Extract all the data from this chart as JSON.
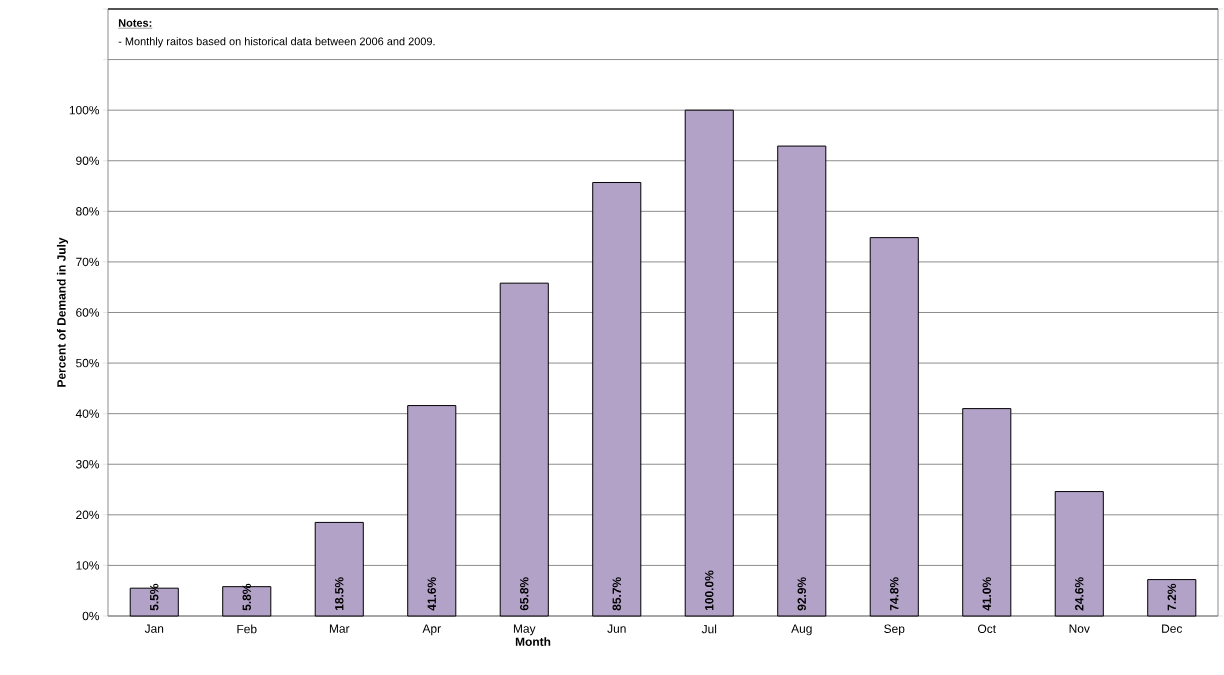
{
  "chart_data": {
    "type": "bar",
    "xlabel": "Month",
    "ylabel": "Percent of Demand in July",
    "annotations": [
      "**Notes:**",
      "- Monthly raitos based on historical data between 2006 and 2009."
    ],
    "categories": [
      "Jan",
      "Feb",
      "Mar",
      "Apr",
      "May",
      "Jun",
      "Jul",
      "Aug",
      "Sep",
      "Oct",
      "Nov",
      "Dec"
    ],
    "values": [
      5.5,
      5.8,
      18.5,
      41.6,
      65.8,
      85.7,
      100.0,
      92.9,
      74.8,
      41.0,
      24.6,
      7.2
    ],
    "value_labels": [
      "5.5%",
      "5.8%",
      "18.5%",
      "41.6%",
      "65.8%",
      "85.7%",
      "100.0%",
      "92.9%",
      "74.8%",
      "41.0%",
      "24.6%",
      "7.2%"
    ],
    "color": "#b3a2c7",
    "ylim": [
      0,
      120
    ],
    "yticks": [
      {
        "value": 0,
        "label": "0%"
      },
      {
        "value": 10,
        "label": "10%"
      },
      {
        "value": 20,
        "label": "20%"
      },
      {
        "value": 30,
        "label": "30%"
      },
      {
        "value": 40,
        "label": "40%"
      },
      {
        "value": 50,
        "label": "50%"
      },
      {
        "value": 60,
        "label": "60%"
      },
      {
        "value": 70,
        "label": "70%"
      },
      {
        "value": 80,
        "label": "80%"
      },
      {
        "value": 90,
        "label": "90%"
      },
      {
        "value": 100,
        "label": "100%"
      },
      {
        "value": 110,
        "label": null
      },
      {
        "value": 120,
        "label": null
      }
    ],
    "grid": "y"
  }
}
